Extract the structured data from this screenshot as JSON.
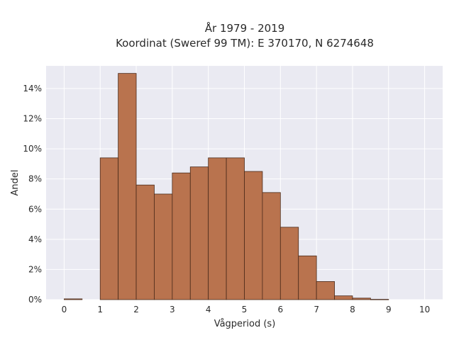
{
  "chart_data": {
    "type": "bar",
    "title_line1": "År 1979 - 2019",
    "title_line2": "Koordinat (Sweref 99 TM): E 370170, N 6274648",
    "xlabel": "Vågperiod (s)",
    "ylabel": "Andel",
    "xlim": [
      -0.5,
      10.5
    ],
    "ylim": [
      0,
      0.155
    ],
    "xticks": [
      0,
      1,
      2,
      3,
      4,
      5,
      6,
      7,
      8,
      9,
      10
    ],
    "xtick_labels": [
      "0",
      "1",
      "2",
      "3",
      "4",
      "5",
      "6",
      "7",
      "8",
      "9",
      "10"
    ],
    "yticks": [
      0,
      0.02,
      0.04,
      0.06,
      0.08,
      0.1,
      0.12,
      0.14
    ],
    "ytick_labels": [
      "0%",
      "2%",
      "4%",
      "6%",
      "8%",
      "10%",
      "12%",
      "14%"
    ],
    "bin_width": 0.5,
    "bins": [
      {
        "start": 0.0,
        "value": 0.0005
      },
      {
        "start": 0.5,
        "value": 0.0
      },
      {
        "start": 1.0,
        "value": 0.094
      },
      {
        "start": 1.5,
        "value": 0.15
      },
      {
        "start": 2.0,
        "value": 0.076
      },
      {
        "start": 2.5,
        "value": 0.07
      },
      {
        "start": 3.0,
        "value": 0.084
      },
      {
        "start": 3.5,
        "value": 0.088
      },
      {
        "start": 4.0,
        "value": 0.094
      },
      {
        "start": 4.5,
        "value": 0.094
      },
      {
        "start": 5.0,
        "value": 0.085
      },
      {
        "start": 5.5,
        "value": 0.071
      },
      {
        "start": 6.0,
        "value": 0.048
      },
      {
        "start": 6.5,
        "value": 0.029
      },
      {
        "start": 7.0,
        "value": 0.012
      },
      {
        "start": 7.5,
        "value": 0.0025
      },
      {
        "start": 8.0,
        "value": 0.001
      },
      {
        "start": 8.5,
        "value": 0.0002
      }
    ],
    "grid": true,
    "colors": {
      "bar_fill": "#b9734e",
      "bar_edge": "#4a2a1a",
      "plot_bg": "#eaeaf2",
      "grid": "#ffffff"
    }
  }
}
